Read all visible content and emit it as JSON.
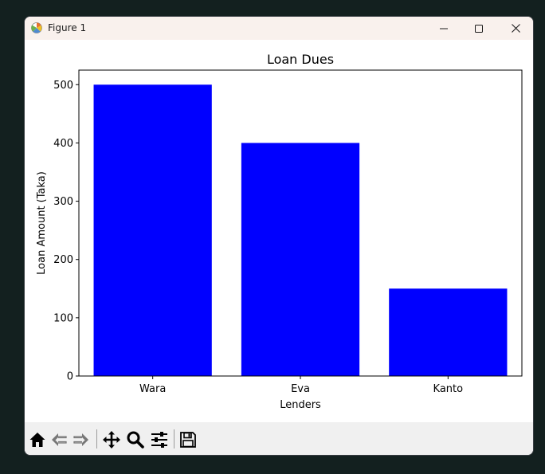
{
  "window": {
    "title": "Figure 1",
    "controls": [
      "minimize",
      "maximize",
      "close"
    ]
  },
  "toolbar": {
    "tools": [
      {
        "name": "home-button",
        "icon": "home-icon"
      },
      {
        "name": "back-button",
        "icon": "back-arrow-icon"
      },
      {
        "name": "forward-button",
        "icon": "forward-arrow-icon"
      },
      {
        "name": "pan-button",
        "icon": "move-icon"
      },
      {
        "name": "zoom-button",
        "icon": "magnifier-icon"
      },
      {
        "name": "configure-subplots-button",
        "icon": "sliders-icon"
      },
      {
        "name": "save-button",
        "icon": "floppy-disk-icon"
      }
    ]
  },
  "chart_data": {
    "type": "bar",
    "title": "Loan Dues",
    "xlabel": "Lenders",
    "ylabel": "Loan Amount (Taka)",
    "categories": [
      "Wara",
      "Eva",
      "Kanto"
    ],
    "values": [
      500,
      400,
      150
    ],
    "ylim": [
      0,
      525
    ],
    "yticks": [
      0,
      100,
      200,
      300,
      400,
      500
    ],
    "bar_color": "#0000ff",
    "grid": false
  }
}
